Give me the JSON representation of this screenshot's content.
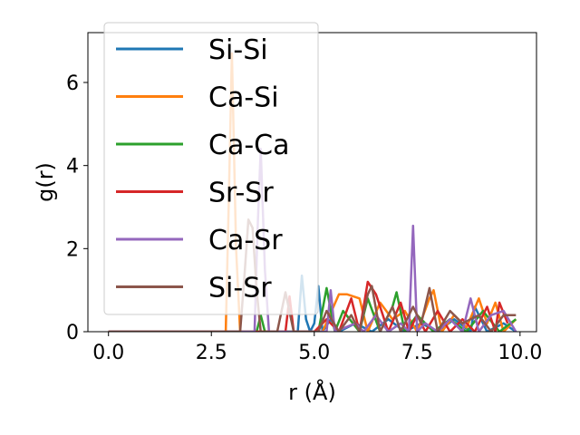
{
  "chart_data": {
    "type": "line",
    "xlabel": "r (Å)",
    "ylabel": "g(r)",
    "xlim": [
      -0.5,
      10.4
    ],
    "ylim": [
      0,
      7.2
    ],
    "x_ticks": [
      0.0,
      2.5,
      5.0,
      7.5,
      10.0
    ],
    "x_tick_labels": [
      "0.0",
      "2.5",
      "5.0",
      "7.5",
      "10.0"
    ],
    "y_ticks": [
      0,
      2,
      4,
      6
    ],
    "y_tick_labels": [
      "0",
      "2",
      "4",
      "6"
    ],
    "grid": false,
    "legend_position": "upper-left",
    "series": [
      {
        "name": "Si-Si",
        "color": "#1f77b4",
        "x": [
          0.0,
          4.6,
          4.7,
          4.8,
          4.9,
          5.0,
          5.1,
          5.2,
          5.4,
          5.6,
          6.0,
          6.4,
          6.8,
          7.2,
          7.6,
          8.0,
          8.4,
          8.8,
          8.9,
          9.2,
          9.6,
          9.9
        ],
        "y": [
          0.0,
          0.0,
          1.35,
          0.3,
          0.0,
          0.2,
          1.1,
          0.0,
          0.3,
          0.0,
          0.2,
          0.0,
          0.3,
          0.0,
          0.2,
          0.0,
          0.3,
          0.0,
          0.6,
          0.0,
          0.2,
          0.0
        ]
      },
      {
        "name": "Ca-Si",
        "color": "#ff7f0e",
        "x": [
          0.0,
          2.85,
          2.92,
          3.0,
          3.1,
          3.2,
          5.2,
          5.6,
          5.8,
          6.1,
          6.3,
          6.6,
          6.9,
          7.2,
          7.5,
          7.8,
          7.9,
          8.1,
          8.4,
          8.7,
          9.0,
          9.2,
          9.4,
          9.6,
          9.9
        ],
        "y": [
          0.0,
          0.0,
          3.0,
          6.7,
          2.0,
          0.0,
          0.0,
          0.9,
          0.9,
          0.8,
          0.0,
          0.7,
          0.3,
          0.5,
          0.0,
          0.8,
          1.0,
          0.0,
          0.4,
          0.1,
          0.8,
          0.2,
          0.7,
          0.0,
          0.3
        ]
      },
      {
        "name": "Ca-Ca",
        "color": "#2ca02c",
        "x": [
          0.0,
          3.6,
          3.7,
          3.8,
          5.1,
          5.3,
          5.5,
          5.7,
          6.1,
          6.3,
          6.6,
          6.9,
          7.0,
          7.2,
          7.5,
          7.9,
          8.3,
          8.7,
          9.1,
          9.5,
          9.9
        ],
        "y": [
          0.0,
          0.0,
          0.4,
          0.0,
          0.0,
          1.05,
          0.0,
          0.5,
          0.0,
          0.8,
          0.0,
          0.6,
          0.95,
          0.0,
          0.4,
          0.0,
          0.3,
          0.0,
          0.5,
          0.0,
          0.3
        ]
      },
      {
        "name": "Sr-Sr",
        "color": "#d62728",
        "x": [
          0.0,
          4.3,
          4.4,
          4.5,
          5.0,
          5.3,
          5.6,
          5.9,
          6.1,
          6.3,
          6.5,
          6.8,
          7.1,
          7.3,
          7.5,
          7.7,
          8.0,
          8.3,
          8.6,
          8.9,
          9.2,
          9.4,
          9.5,
          9.7
        ],
        "y": [
          0.0,
          0.0,
          0.85,
          0.0,
          0.0,
          0.3,
          0.0,
          0.8,
          0.0,
          1.2,
          0.9,
          0.0,
          0.7,
          0.0,
          0.4,
          0.0,
          0.5,
          0.0,
          0.3,
          0.0,
          0.6,
          0.0,
          0.7,
          0.2
        ]
      },
      {
        "name": "Ca-Sr",
        "color": "#9467bd",
        "x": [
          0.0,
          3.55,
          3.62,
          3.7,
          3.8,
          3.9,
          5.3,
          5.4,
          5.5,
          6.0,
          6.2,
          6.5,
          6.8,
          7.1,
          7.3,
          7.4,
          7.5,
          7.7,
          8.0,
          8.3,
          8.6,
          8.8,
          9.0,
          9.3,
          9.6,
          9.9
        ],
        "y": [
          0.0,
          0.0,
          2.4,
          4.4,
          1.5,
          0.0,
          0.0,
          1.0,
          0.0,
          0.2,
          0.0,
          0.4,
          0.0,
          0.2,
          0.0,
          2.55,
          0.0,
          0.2,
          0.0,
          0.3,
          0.0,
          0.8,
          0.0,
          0.4,
          0.5,
          0.0
        ]
      },
      {
        "name": "Si-Sr",
        "color": "#8c564b",
        "x": [
          0.0,
          3.2,
          3.3,
          3.4,
          3.5,
          3.6,
          3.7,
          4.1,
          4.3,
          4.5,
          5.1,
          5.3,
          5.6,
          5.9,
          6.1,
          6.3,
          6.4,
          6.6,
          6.9,
          7.1,
          7.4,
          7.6,
          7.8,
          8.0,
          8.3,
          8.6,
          9.0,
          9.3,
          9.6,
          9.9
        ],
        "y": [
          0.0,
          0.0,
          1.3,
          2.7,
          2.5,
          1.0,
          0.0,
          0.0,
          0.95,
          0.0,
          0.0,
          0.5,
          0.0,
          0.4,
          0.0,
          0.9,
          1.1,
          0.0,
          0.6,
          0.0,
          0.6,
          0.2,
          1.05,
          0.0,
          0.5,
          0.2,
          0.4,
          0.0,
          0.4,
          0.4
        ]
      }
    ]
  }
}
